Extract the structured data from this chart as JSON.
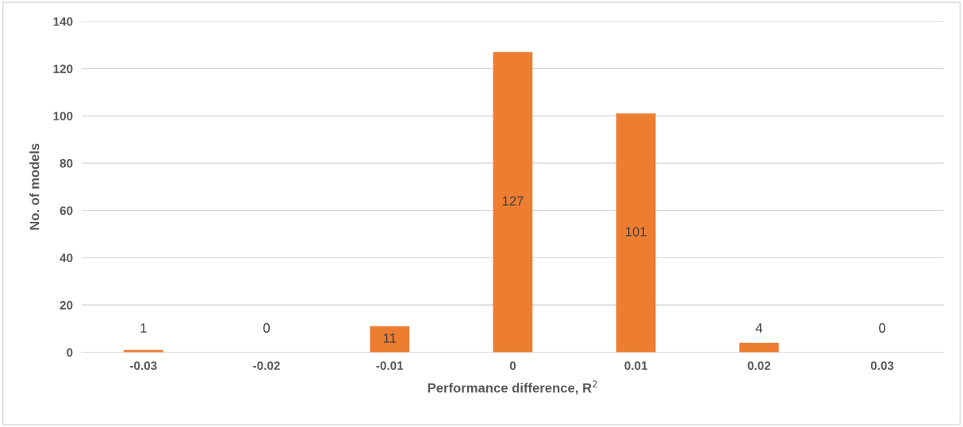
{
  "chart_data": {
    "type": "bar",
    "xlabel": "Performance difference, R$^{2}$",
    "ylabel": "No. of models",
    "categories": [
      "-0.03",
      "-0.02",
      "-0.01",
      "0",
      "0.01",
      "0.02",
      "0.03"
    ],
    "values": [
      1,
      0,
      11,
      127,
      101,
      4,
      0
    ],
    "color": "#ed7d31",
    "ylim": [
      0,
      140
    ],
    "yticks": [
      0,
      20,
      40,
      60,
      80,
      100,
      120,
      140
    ],
    "grid": "y",
    "data_labels": true
  }
}
